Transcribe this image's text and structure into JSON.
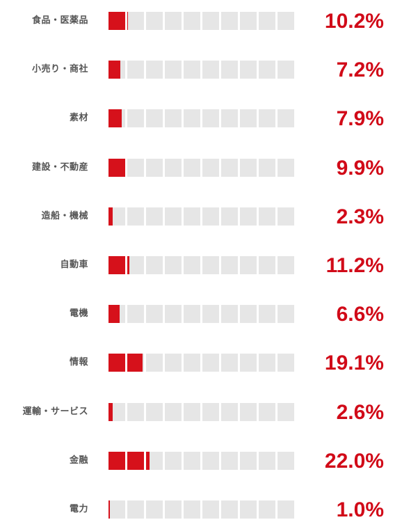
{
  "chart_data": {
    "type": "bar",
    "categories": [
      "食品・医薬品",
      "小売り・商社",
      "素材",
      "建設・不動産",
      "造船・機械",
      "自動車",
      "電機",
      "情報",
      "運輸・サービス",
      "金融",
      "電力"
    ],
    "values": [
      10.2,
      7.2,
      7.9,
      9.9,
      2.3,
      11.2,
      6.6,
      19.1,
      2.6,
      22.0,
      1.0
    ],
    "value_labels": [
      "10.2%",
      "7.2%",
      "7.9%",
      "9.9%",
      "2.3%",
      "11.2%",
      "6.6%",
      "19.1%",
      "2.6%",
      "22.0%",
      "1.0%"
    ],
    "unit": "%",
    "cells_per_bar": 10,
    "colors": {
      "fill": "#d6111b",
      "empty": "#e6e6e6",
      "value_text": "#d10a18",
      "label_text": "#555555"
    }
  }
}
